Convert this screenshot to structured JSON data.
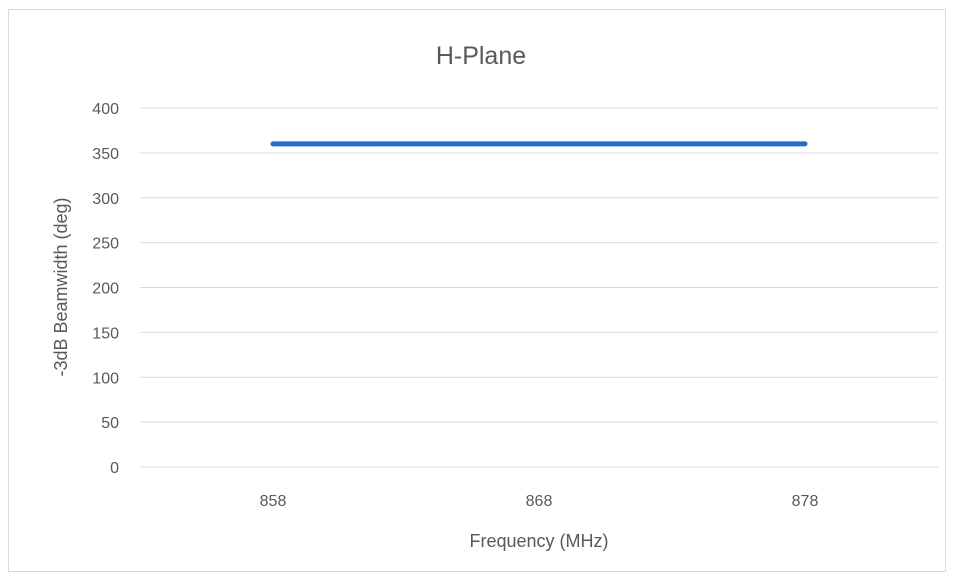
{
  "chart_data": {
    "type": "line",
    "title": "H-Plane",
    "xlabel": "Frequency (MHz)",
    "ylabel": "-3dB Beamwidth (deg)",
    "categories": [
      "858",
      "868",
      "878"
    ],
    "series": [
      {
        "values": [
          360,
          360,
          360
        ],
        "color": "#1f6fc5"
      }
    ],
    "ylim": [
      0,
      400
    ],
    "yticks": [
      0,
      50,
      100,
      150,
      200,
      250,
      300,
      350,
      400
    ],
    "grid": true,
    "legend": "none",
    "colors": {
      "gridline": "#d9d9d9",
      "text": "#595959",
      "border": "#d9d9d9"
    }
  }
}
